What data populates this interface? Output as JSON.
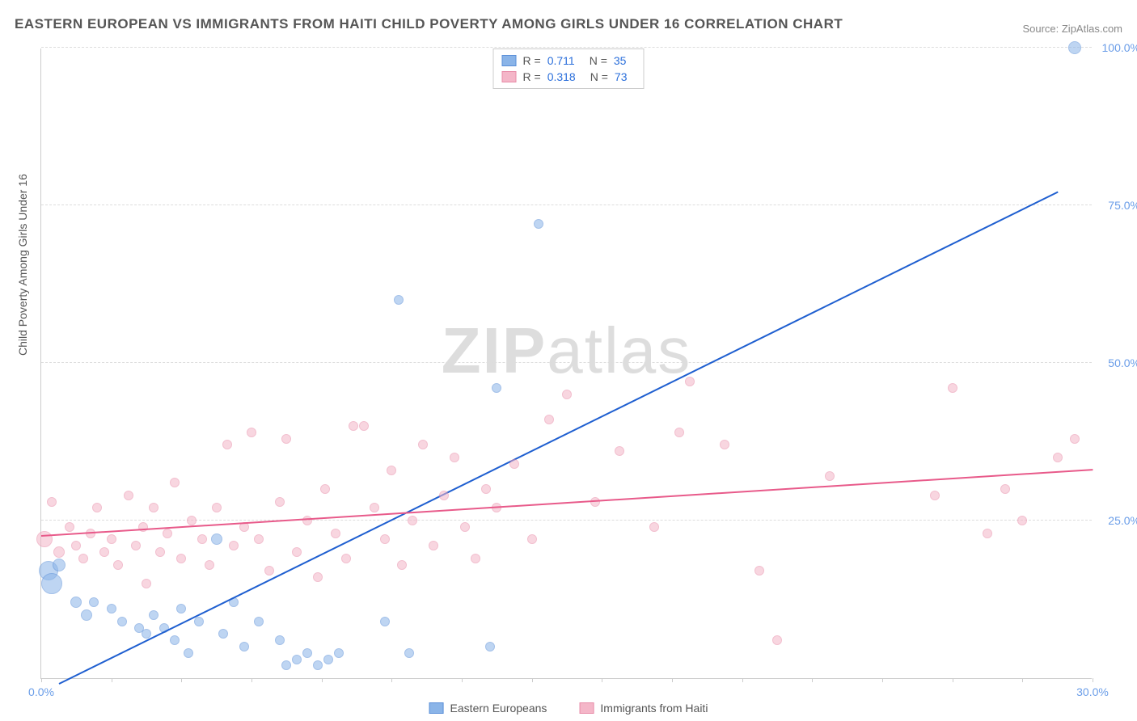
{
  "title": "EASTERN EUROPEAN VS IMMIGRANTS FROM HAITI CHILD POVERTY AMONG GIRLS UNDER 16 CORRELATION CHART",
  "source": "Source: ZipAtlas.com",
  "ylabel": "Child Poverty Among Girls Under 16",
  "watermark_bold": "ZIP",
  "watermark_rest": "atlas",
  "chart": {
    "type": "scatter",
    "background_color": "#ffffff",
    "grid_color": "#dddddd",
    "axis_color": "#cccccc",
    "tick_label_color": "#6a9de8",
    "text_color": "#555555",
    "xlim": [
      0,
      30
    ],
    "ylim": [
      0,
      100
    ],
    "xticks": [
      0,
      2,
      4,
      6,
      8,
      10,
      12,
      14,
      16,
      18,
      20,
      22,
      24,
      26,
      28,
      30
    ],
    "xtick_labels": [
      "0.0%",
      "",
      "",
      "",
      "",
      "",
      "",
      "",
      "",
      "",
      "",
      "",
      "",
      "",
      "",
      "30.0%"
    ],
    "yticks": [
      25,
      50,
      75,
      100
    ],
    "ytick_labels": [
      "25.0%",
      "50.0%",
      "75.0%",
      "100.0%"
    ],
    "point_radius_min": 5,
    "point_radius_max": 13,
    "point_opacity": 0.55
  },
  "series": [
    {
      "name": "Eastern Europeans",
      "fill_color": "#8ab4e8",
      "stroke_color": "#5a8fd8",
      "line_color": "#1f5fd0",
      "R": "0.711",
      "N": "35",
      "trend": {
        "x1": 0.5,
        "y1": -1,
        "x2": 29,
        "y2": 77
      },
      "points": [
        {
          "x": 0.2,
          "y": 17,
          "r": 12
        },
        {
          "x": 0.3,
          "y": 15,
          "r": 13
        },
        {
          "x": 0.5,
          "y": 18,
          "r": 8
        },
        {
          "x": 1.0,
          "y": 12,
          "r": 7
        },
        {
          "x": 1.3,
          "y": 10,
          "r": 7
        },
        {
          "x": 1.5,
          "y": 12,
          "r": 6
        },
        {
          "x": 2.0,
          "y": 11,
          "r": 6
        },
        {
          "x": 2.3,
          "y": 9,
          "r": 6
        },
        {
          "x": 2.8,
          "y": 8,
          "r": 6
        },
        {
          "x": 3.0,
          "y": 7,
          "r": 6
        },
        {
          "x": 3.2,
          "y": 10,
          "r": 6
        },
        {
          "x": 3.5,
          "y": 8,
          "r": 6
        },
        {
          "x": 3.8,
          "y": 6,
          "r": 6
        },
        {
          "x": 4.0,
          "y": 11,
          "r": 6
        },
        {
          "x": 4.2,
          "y": 4,
          "r": 6
        },
        {
          "x": 4.5,
          "y": 9,
          "r": 6
        },
        {
          "x": 5.0,
          "y": 22,
          "r": 7
        },
        {
          "x": 5.2,
          "y": 7,
          "r": 6
        },
        {
          "x": 5.5,
          "y": 12,
          "r": 6
        },
        {
          "x": 5.8,
          "y": 5,
          "r": 6
        },
        {
          "x": 6.2,
          "y": 9,
          "r": 6
        },
        {
          "x": 6.8,
          "y": 6,
          "r": 6
        },
        {
          "x": 7.0,
          "y": 2,
          "r": 6
        },
        {
          "x": 7.3,
          "y": 3,
          "r": 6
        },
        {
          "x": 7.6,
          "y": 4,
          "r": 6
        },
        {
          "x": 7.9,
          "y": 2,
          "r": 6
        },
        {
          "x": 8.2,
          "y": 3,
          "r": 6
        },
        {
          "x": 8.5,
          "y": 4,
          "r": 6
        },
        {
          "x": 9.8,
          "y": 9,
          "r": 6
        },
        {
          "x": 10.5,
          "y": 4,
          "r": 6
        },
        {
          "x": 12.8,
          "y": 5,
          "r": 6
        },
        {
          "x": 13.0,
          "y": 46,
          "r": 6
        },
        {
          "x": 14.2,
          "y": 72,
          "r": 6
        },
        {
          "x": 10.2,
          "y": 60,
          "r": 6
        },
        {
          "x": 29.5,
          "y": 100,
          "r": 8
        }
      ]
    },
    {
      "name": "Immigrants from Haiti",
      "fill_color": "#f4b6c8",
      "stroke_color": "#e88ca8",
      "line_color": "#e85a8a",
      "R": "0.318",
      "N": "73",
      "trend": {
        "x1": 0,
        "y1": 22.5,
        "x2": 30,
        "y2": 33
      },
      "points": [
        {
          "x": 0.1,
          "y": 22,
          "r": 10
        },
        {
          "x": 0.3,
          "y": 28,
          "r": 6
        },
        {
          "x": 0.5,
          "y": 20,
          "r": 7
        },
        {
          "x": 0.8,
          "y": 24,
          "r": 6
        },
        {
          "x": 1.0,
          "y": 21,
          "r": 6
        },
        {
          "x": 1.2,
          "y": 19,
          "r": 6
        },
        {
          "x": 1.4,
          "y": 23,
          "r": 6
        },
        {
          "x": 1.6,
          "y": 27,
          "r": 6
        },
        {
          "x": 1.8,
          "y": 20,
          "r": 6
        },
        {
          "x": 2.0,
          "y": 22,
          "r": 6
        },
        {
          "x": 2.2,
          "y": 18,
          "r": 6
        },
        {
          "x": 2.5,
          "y": 29,
          "r": 6
        },
        {
          "x": 2.7,
          "y": 21,
          "r": 6
        },
        {
          "x": 2.9,
          "y": 24,
          "r": 6
        },
        {
          "x": 3.0,
          "y": 15,
          "r": 6
        },
        {
          "x": 3.2,
          "y": 27,
          "r": 6
        },
        {
          "x": 3.4,
          "y": 20,
          "r": 6
        },
        {
          "x": 3.6,
          "y": 23,
          "r": 6
        },
        {
          "x": 3.8,
          "y": 31,
          "r": 6
        },
        {
          "x": 4.0,
          "y": 19,
          "r": 6
        },
        {
          "x": 4.3,
          "y": 25,
          "r": 6
        },
        {
          "x": 4.6,
          "y": 22,
          "r": 6
        },
        {
          "x": 4.8,
          "y": 18,
          "r": 6
        },
        {
          "x": 5.0,
          "y": 27,
          "r": 6
        },
        {
          "x": 5.3,
          "y": 37,
          "r": 6
        },
        {
          "x": 5.5,
          "y": 21,
          "r": 6
        },
        {
          "x": 5.8,
          "y": 24,
          "r": 6
        },
        {
          "x": 6.0,
          "y": 39,
          "r": 6
        },
        {
          "x": 6.2,
          "y": 22,
          "r": 6
        },
        {
          "x": 6.5,
          "y": 17,
          "r": 6
        },
        {
          "x": 6.8,
          "y": 28,
          "r": 6
        },
        {
          "x": 7.0,
          "y": 38,
          "r": 6
        },
        {
          "x": 7.3,
          "y": 20,
          "r": 6
        },
        {
          "x": 7.6,
          "y": 25,
          "r": 6
        },
        {
          "x": 7.9,
          "y": 16,
          "r": 6
        },
        {
          "x": 8.1,
          "y": 30,
          "r": 6
        },
        {
          "x": 8.4,
          "y": 23,
          "r": 6
        },
        {
          "x": 8.7,
          "y": 19,
          "r": 6
        },
        {
          "x": 8.9,
          "y": 40,
          "r": 6
        },
        {
          "x": 9.2,
          "y": 40,
          "r": 6
        },
        {
          "x": 9.5,
          "y": 27,
          "r": 6
        },
        {
          "x": 9.8,
          "y": 22,
          "r": 6
        },
        {
          "x": 10.0,
          "y": 33,
          "r": 6
        },
        {
          "x": 10.3,
          "y": 18,
          "r": 6
        },
        {
          "x": 10.6,
          "y": 25,
          "r": 6
        },
        {
          "x": 10.9,
          "y": 37,
          "r": 6
        },
        {
          "x": 11.2,
          "y": 21,
          "r": 6
        },
        {
          "x": 11.5,
          "y": 29,
          "r": 6
        },
        {
          "x": 11.8,
          "y": 35,
          "r": 6
        },
        {
          "x": 12.1,
          "y": 24,
          "r": 6
        },
        {
          "x": 12.4,
          "y": 19,
          "r": 6
        },
        {
          "x": 12.7,
          "y": 30,
          "r": 6
        },
        {
          "x": 13.0,
          "y": 27,
          "r": 6
        },
        {
          "x": 13.5,
          "y": 34,
          "r": 6
        },
        {
          "x": 14.0,
          "y": 22,
          "r": 6
        },
        {
          "x": 14.5,
          "y": 41,
          "r": 6
        },
        {
          "x": 15.0,
          "y": 45,
          "r": 6
        },
        {
          "x": 15.8,
          "y": 28,
          "r": 6
        },
        {
          "x": 16.5,
          "y": 36,
          "r": 6
        },
        {
          "x": 17.5,
          "y": 24,
          "r": 6
        },
        {
          "x": 18.2,
          "y": 39,
          "r": 6
        },
        {
          "x": 18.5,
          "y": 47,
          "r": 6
        },
        {
          "x": 19.5,
          "y": 37,
          "r": 6
        },
        {
          "x": 20.5,
          "y": 17,
          "r": 6
        },
        {
          "x": 21.0,
          "y": 6,
          "r": 6
        },
        {
          "x": 22.5,
          "y": 32,
          "r": 6
        },
        {
          "x": 25.5,
          "y": 29,
          "r": 6
        },
        {
          "x": 26.0,
          "y": 46,
          "r": 6
        },
        {
          "x": 27.0,
          "y": 23,
          "r": 6
        },
        {
          "x": 27.5,
          "y": 30,
          "r": 6
        },
        {
          "x": 28.0,
          "y": 25,
          "r": 6
        },
        {
          "x": 29.0,
          "y": 35,
          "r": 6
        },
        {
          "x": 29.5,
          "y": 38,
          "r": 6
        }
      ]
    }
  ],
  "legend_labels": {
    "r_prefix": "R  =",
    "n_prefix": "N  ="
  }
}
